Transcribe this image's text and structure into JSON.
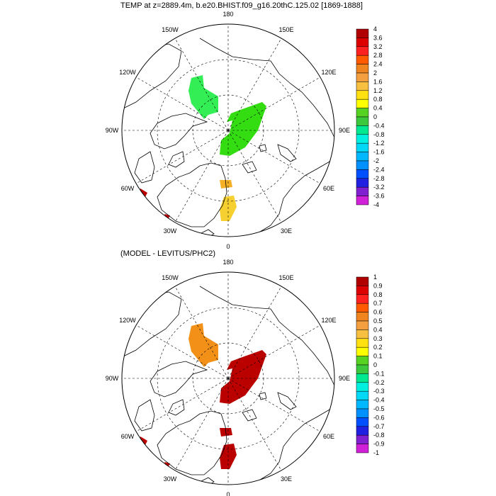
{
  "panels": [
    {
      "title": "TEMP at z=2889.4m, b.e20.BHIST.f09_g16.20thC.125.02 [1869-1888]",
      "colorbar": {
        "labels": [
          "4",
          "3.6",
          "3.2",
          "2.8",
          "2.4",
          "2",
          "1.6",
          "1.2",
          "0.8",
          "0.4",
          "0",
          "-0.4",
          "-0.8",
          "-1.2",
          "-1.6",
          "-2",
          "-2.4",
          "-2.8",
          "-3.2",
          "-3.6",
          "-4"
        ]
      },
      "anomalies": [
        {
          "name": "canada-basin-patch",
          "value": 0.6,
          "color": "#33ee55"
        },
        {
          "name": "eurasian-basin-patch",
          "value": 0.8,
          "color": "#33dd11"
        },
        {
          "name": "fram-strait-patch",
          "value": 2.0,
          "color": "#f5b025"
        },
        {
          "name": "greenland-sea-patch",
          "value": 1.4,
          "color": "#f5d030"
        },
        {
          "name": "labrador-sea-patch",
          "value": 4,
          "color": "#bb0000"
        }
      ]
    },
    {
      "title": "(MODEL - LEVITUS/PHC2)",
      "colorbar": {
        "labels": [
          "1",
          "0.9",
          "0.8",
          "0.7",
          "0.6",
          "0.5",
          "0.4",
          "0.3",
          "0.2",
          "0.1",
          "0",
          "-0.1",
          "-0.2",
          "-0.3",
          "-0.4",
          "-0.5",
          "-0.6",
          "-0.7",
          "-0.8",
          "-0.9",
          "-1"
        ]
      },
      "anomalies": [
        {
          "name": "canada-basin-patch",
          "value": 0.6,
          "color": "#f39018"
        },
        {
          "name": "eurasian-basin-patch",
          "value": 1,
          "color": "#bb0000"
        },
        {
          "name": "fram-strait-patch",
          "value": 1,
          "color": "#bb0000"
        },
        {
          "name": "greenland-sea-patch",
          "value": 1,
          "color": "#bb0000"
        },
        {
          "name": "labrador-sea-patch",
          "value": 1,
          "color": "#bb0000"
        }
      ]
    }
  ],
  "longitude_labels": [
    "180",
    "150E",
    "120E",
    "90E",
    "60E",
    "30E",
    "0",
    "30W",
    "60W",
    "90W",
    "120W",
    "150W"
  ],
  "colors": {
    "colorbar": [
      "#b00000",
      "#dd0000",
      "#ff2020",
      "#ff5a00",
      "#f08520",
      "#f5a040",
      "#f7c040",
      "#ffe010",
      "#ffff00",
      "#55d222",
      "#3cc83c",
      "#00e890",
      "#00f0e0",
      "#00d8f8",
      "#00b8ff",
      "#0090ff",
      "#0050ff",
      "#2020e0",
      "#8020d0",
      "#d020d8",
      "#d0d0d0",
      "#707070"
    ]
  }
}
